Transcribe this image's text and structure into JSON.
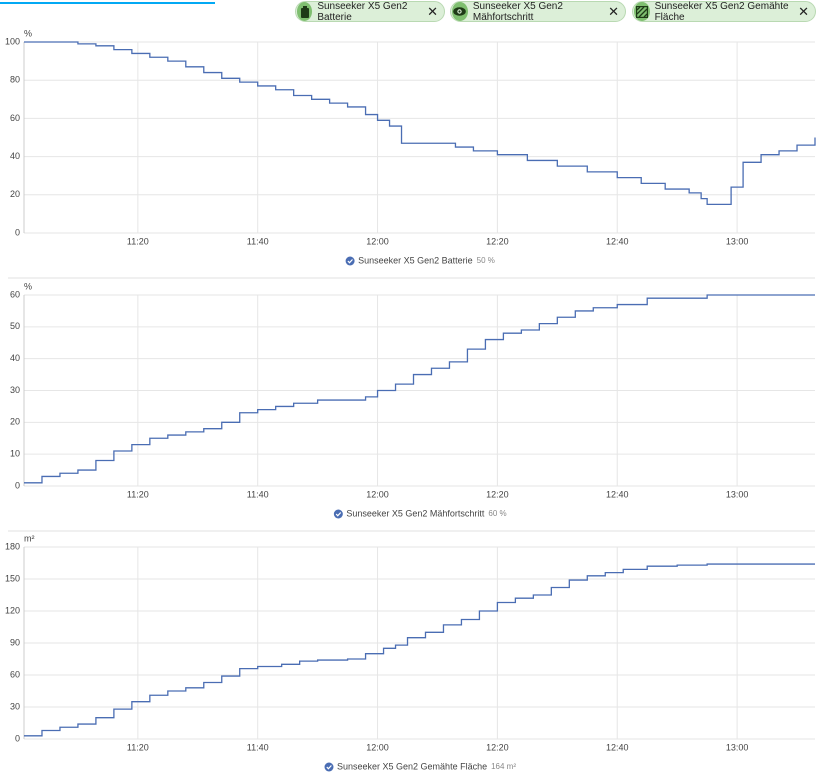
{
  "filters": [
    "Sunseeker X5 Gen2 Batterie",
    "Sunseeker X5 Gen2 Mähfortschritt",
    "Sunseeker X5 Gen2 Gemähte Fläche"
  ],
  "chart_data": [
    {
      "type": "line",
      "unit": "%",
      "state": "50 %",
      "x": [
        "11:01",
        "11:05",
        "11:08",
        "11:10",
        "11:13",
        "11:16",
        "11:19",
        "11:22",
        "11:25",
        "11:28",
        "11:31",
        "11:34",
        "11:37",
        "11:40",
        "11:43",
        "11:46",
        "11:49",
        "11:52",
        "11:55",
        "11:58",
        "12:00",
        "12:02",
        "12:04",
        "12:10",
        "12:13",
        "12:16",
        "12:20",
        "12:25",
        "12:30",
        "12:35",
        "12:40",
        "12:44",
        "12:48",
        "12:52",
        "12:54",
        "12:55",
        "12:57",
        "12:59",
        "13:01",
        "13:04",
        "13:07",
        "13:10",
        "13:13"
      ],
      "series": [
        {
          "name": "Sunseeker X5 Gen2 Batterie",
          "color": "#4a6db3",
          "values": [
            100,
            100,
            100,
            99,
            98,
            96,
            94,
            92,
            90,
            87,
            84,
            81,
            79,
            77,
            75,
            72,
            70,
            68,
            66,
            62,
            59,
            56,
            47,
            47,
            45,
            43,
            41,
            38,
            35,
            32,
            29,
            26,
            23,
            21,
            18,
            15,
            15,
            24,
            37,
            41,
            43,
            46,
            50
          ]
        }
      ],
      "xlim": [
        "11:01",
        "13:13"
      ],
      "xticks": [
        "11:20",
        "11:40",
        "12:00",
        "12:20",
        "12:40",
        "13:00"
      ],
      "ylim": [
        0,
        100
      ],
      "yticks": [
        0,
        20,
        40,
        60,
        80,
        100
      ],
      "grid": true
    },
    {
      "type": "line",
      "unit": "%",
      "state": "60 %",
      "x": [
        "11:01",
        "11:04",
        "11:07",
        "11:10",
        "11:13",
        "11:16",
        "11:19",
        "11:22",
        "11:25",
        "11:28",
        "11:31",
        "11:34",
        "11:37",
        "11:40",
        "11:43",
        "11:46",
        "11:50",
        "11:55",
        "11:58",
        "12:00",
        "12:03",
        "12:06",
        "12:09",
        "12:12",
        "12:15",
        "12:18",
        "12:21",
        "12:24",
        "12:27",
        "12:30",
        "12:33",
        "12:36",
        "12:40",
        "12:45",
        "12:50",
        "12:55",
        "13:13"
      ],
      "series": [
        {
          "name": "Sunseeker X5 Gen2 Mähfortschritt",
          "color": "#4a6db3",
          "values": [
            1,
            3,
            4,
            5,
            8,
            11,
            13,
            15,
            16,
            17,
            18,
            20,
            23,
            24,
            25,
            26,
            27,
            27,
            28,
            30,
            32,
            35,
            37,
            39,
            43,
            46,
            48,
            49,
            51,
            53,
            55,
            56,
            57,
            59,
            59,
            60,
            60
          ]
        }
      ],
      "xlim": [
        "11:01",
        "13:13"
      ],
      "xticks": [
        "11:20",
        "11:40",
        "12:00",
        "12:20",
        "12:40",
        "13:00"
      ],
      "ylim": [
        0,
        60
      ],
      "yticks": [
        0,
        10,
        20,
        30,
        40,
        50,
        60
      ],
      "grid": true
    },
    {
      "type": "line",
      "unit": "m²",
      "state": "164 m²",
      "x": [
        "11:01",
        "11:04",
        "11:07",
        "11:10",
        "11:13",
        "11:16",
        "11:19",
        "11:22",
        "11:25",
        "11:28",
        "11:31",
        "11:34",
        "11:37",
        "11:40",
        "11:44",
        "11:47",
        "11:50",
        "11:55",
        "11:58",
        "12:01",
        "12:03",
        "12:05",
        "12:08",
        "12:11",
        "12:14",
        "12:17",
        "12:20",
        "12:23",
        "12:26",
        "12:29",
        "12:32",
        "12:35",
        "12:38",
        "12:41",
        "12:45",
        "12:50",
        "12:55",
        "13:13"
      ],
      "series": [
        {
          "name": "Sunseeker X5 Gen2 Gemähte Fläche",
          "color": "#4a6db3",
          "values": [
            3,
            8,
            11,
            14,
            20,
            28,
            35,
            41,
            45,
            48,
            53,
            59,
            66,
            68,
            70,
            73,
            74,
            75,
            80,
            85,
            88,
            95,
            100,
            107,
            112,
            120,
            128,
            132,
            135,
            142,
            149,
            153,
            156,
            159,
            162,
            163,
            164,
            164
          ]
        }
      ],
      "xlim": [
        "11:01",
        "13:13"
      ],
      "xticks": [
        "11:20",
        "11:40",
        "12:00",
        "12:20",
        "12:40",
        "13:00"
      ],
      "ylim": [
        0,
        180
      ],
      "yticks": [
        0,
        30,
        60,
        90,
        120,
        150,
        180
      ],
      "grid": true
    }
  ]
}
